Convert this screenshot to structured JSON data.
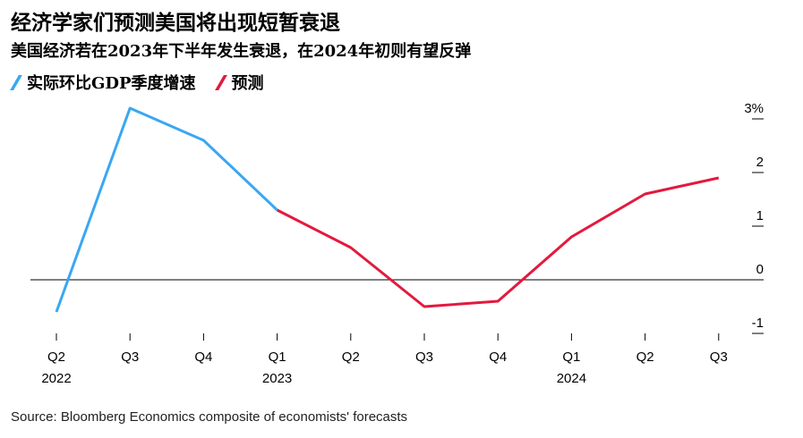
{
  "title": "经济学家们预测美国将出现短暂衰退",
  "subtitle": "美国经济若在2023年下半年发生衰退，在2024年初则有望反弹",
  "source": "Source: Bloomberg Economics composite of economists' forecasts",
  "colors": {
    "actual": "#3aa7f2",
    "forecast": "#e3193e",
    "axis": "#000000"
  },
  "chart_data": {
    "type": "line",
    "categories": [
      "Q2",
      "Q3",
      "Q4",
      "Q1",
      "Q2",
      "Q3",
      "Q4",
      "Q1",
      "Q2",
      "Q3"
    ],
    "year_labels": [
      "2022",
      "",
      "",
      "2023",
      "",
      "",
      "",
      "2024",
      "",
      ""
    ],
    "series": [
      {
        "name": "实际环比GDP季度增速",
        "color": "#3aa7f2",
        "values": [
          -0.6,
          3.2,
          2.6,
          1.3,
          null,
          null,
          null,
          null,
          null,
          null
        ]
      },
      {
        "name": "预测",
        "color": "#e3193e",
        "values": [
          null,
          null,
          null,
          1.3,
          0.6,
          -0.5,
          -0.4,
          0.8,
          1.6,
          1.9
        ]
      }
    ],
    "yticks": [
      "3%",
      "2",
      "1",
      "0",
      "-1"
    ],
    "ytick_values": [
      3,
      2,
      1,
      0,
      -1
    ],
    "ylim": [
      -1,
      3
    ],
    "legend_position": "top-left",
    "grid": false
  }
}
